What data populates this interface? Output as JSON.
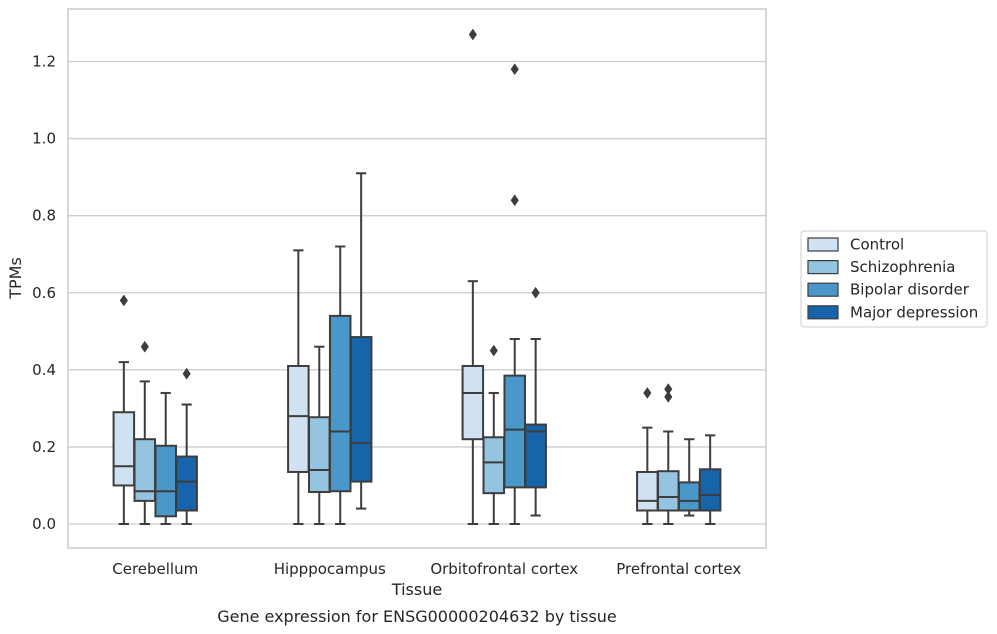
{
  "chart_data": {
    "type": "boxplot",
    "title": "",
    "xlabel": "Tissue",
    "ylabel": "TPMs",
    "caption": "Gene expression for ENSG00000204632 by tissue",
    "ylim": [
      -0.06,
      1.34
    ],
    "yticks": [
      0.0,
      0.2,
      0.4,
      0.6,
      0.8,
      1.0,
      1.2
    ],
    "ytick_labels": [
      "0.0",
      "0.2",
      "0.4",
      "0.6",
      "0.8",
      "1.0",
      "1.2"
    ],
    "grid": "horizontal",
    "legend_position": "right",
    "categories": [
      "Cerebellum",
      "Hipppocampus",
      "Orbitofrontal cortex",
      "Prefrontal cortex"
    ],
    "series": [
      {
        "name": "Control",
        "color": "#d0e1f2",
        "boxes": [
          {
            "whislo": 0.0,
            "q1": 0.1,
            "med": 0.15,
            "q3": 0.29,
            "whishi": 0.42,
            "fliers": [
              0.58
            ]
          },
          {
            "whislo": 0.0,
            "q1": 0.135,
            "med": 0.28,
            "q3": 0.41,
            "whishi": 0.71,
            "fliers": []
          },
          {
            "whislo": 0.0,
            "q1": 0.22,
            "med": 0.34,
            "q3": 0.41,
            "whishi": 0.63,
            "fliers": [
              1.27
            ]
          },
          {
            "whislo": 0.0,
            "q1": 0.035,
            "med": 0.06,
            "q3": 0.135,
            "whishi": 0.25,
            "fliers": [
              0.34
            ]
          }
        ]
      },
      {
        "name": "Schizophrenia",
        "color": "#94c4df",
        "boxes": [
          {
            "whislo": 0.0,
            "q1": 0.06,
            "med": 0.085,
            "q3": 0.22,
            "whishi": 0.37,
            "fliers": [
              0.46
            ]
          },
          {
            "whislo": 0.0,
            "q1": 0.083,
            "med": 0.14,
            "q3": 0.277,
            "whishi": 0.46,
            "fliers": []
          },
          {
            "whislo": 0.0,
            "q1": 0.08,
            "med": 0.16,
            "q3": 0.225,
            "whishi": 0.34,
            "fliers": [
              0.45
            ]
          },
          {
            "whislo": 0.0,
            "q1": 0.035,
            "med": 0.07,
            "q3": 0.137,
            "whishi": 0.24,
            "fliers": [
              0.33,
              0.35
            ]
          }
        ]
      },
      {
        "name": "Bipolar disorder",
        "color": "#4a98c9",
        "boxes": [
          {
            "whislo": 0.0,
            "q1": 0.02,
            "med": 0.085,
            "q3": 0.203,
            "whishi": 0.34,
            "fliers": []
          },
          {
            "whislo": 0.0,
            "q1": 0.085,
            "med": 0.24,
            "q3": 0.54,
            "whishi": 0.72,
            "fliers": []
          },
          {
            "whislo": 0.0,
            "q1": 0.095,
            "med": 0.245,
            "q3": 0.385,
            "whishi": 0.48,
            "fliers": [
              0.84,
              1.18
            ]
          },
          {
            "whislo": 0.022,
            "q1": 0.035,
            "med": 0.06,
            "q3": 0.108,
            "whishi": 0.22,
            "fliers": []
          }
        ]
      },
      {
        "name": "Major depression",
        "color": "#1764ab",
        "boxes": [
          {
            "whislo": 0.0,
            "q1": 0.035,
            "med": 0.11,
            "q3": 0.175,
            "whishi": 0.31,
            "fliers": [
              0.39
            ]
          },
          {
            "whislo": 0.04,
            "q1": 0.11,
            "med": 0.21,
            "q3": 0.485,
            "whishi": 0.91,
            "fliers": []
          },
          {
            "whislo": 0.022,
            "q1": 0.095,
            "med": 0.24,
            "q3": 0.258,
            "whishi": 0.48,
            "fliers": [
              0.6
            ]
          },
          {
            "whislo": 0.0,
            "q1": 0.035,
            "med": 0.075,
            "q3": 0.142,
            "whishi": 0.23,
            "fliers": []
          }
        ]
      }
    ],
    "colors": {
      "line": "#3d3d3d",
      "grid": "#cccccc",
      "frame": "#cccccc",
      "text": "#262626"
    }
  }
}
